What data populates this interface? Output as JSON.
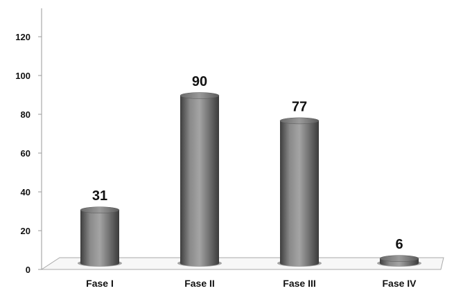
{
  "chart_data": {
    "type": "bar",
    "title": "",
    "xlabel": "",
    "ylabel": "",
    "categories": [
      "Fase I",
      "Fase II",
      "Fase III",
      "Fase IV"
    ],
    "values": [
      31,
      90,
      77,
      6
    ],
    "data_labels": [
      "31",
      "90",
      "77",
      "6"
    ],
    "ylim": [
      0,
      120
    ],
    "yticks": [
      "0",
      "20",
      "40",
      "60",
      "80",
      "100",
      "120"
    ],
    "grid": false,
    "legend": "none",
    "bar_style": "3d-cylinder",
    "colors": {
      "bar": "#6e6e6e",
      "bar_top": "#8c8c8c",
      "axis": "#9a9a9a"
    }
  }
}
